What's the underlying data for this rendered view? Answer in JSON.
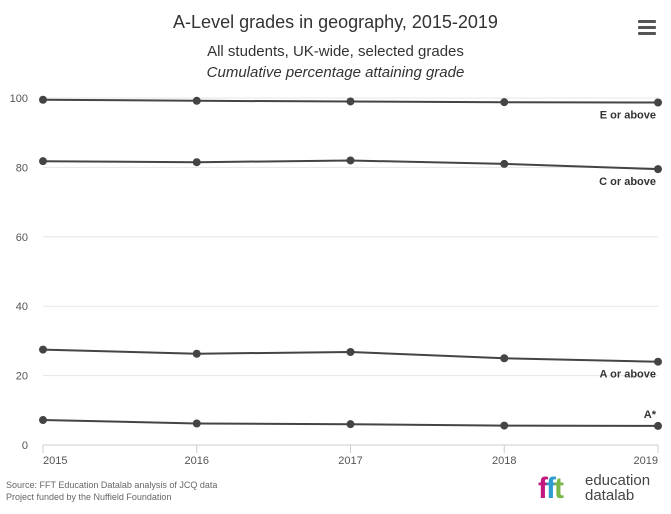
{
  "chart_data": {
    "type": "line",
    "title": "A-Level grades in geography, 2015-2019",
    "subtitle": "All students, UK-wide, selected grades",
    "subtitle2": "Cumulative percentage attaining grade",
    "x": [
      "2015",
      "2016",
      "2017",
      "2018",
      "2019"
    ],
    "ylim": [
      0,
      100
    ],
    "yticks": [
      0,
      20,
      40,
      60,
      80,
      100
    ],
    "grid": true,
    "series": [
      {
        "name": "E or above",
        "values": [
          99.5,
          99.2,
          99.0,
          98.8,
          98.7
        ]
      },
      {
        "name": "C or above",
        "values": [
          81.8,
          81.5,
          82.0,
          81.0,
          79.5
        ]
      },
      {
        "name": "A or above",
        "values": [
          27.5,
          26.3,
          26.8,
          25.0,
          24.0
        ]
      },
      {
        "name": "A*",
        "values": [
          7.2,
          6.2,
          6.0,
          5.6,
          5.5
        ]
      }
    ],
    "line_color": "#444444",
    "grid_color": "#e6e6e6"
  },
  "credits": {
    "line1": "Source: FFT Education Datalab analysis of JCQ data",
    "line2": "Project funded by the Nuffield Foundation"
  },
  "logo": {
    "mark": "fft",
    "text1": "education",
    "text2": "datalab",
    "colors": [
      "#c2187f",
      "#2e9ccf",
      "#7ab648"
    ]
  }
}
